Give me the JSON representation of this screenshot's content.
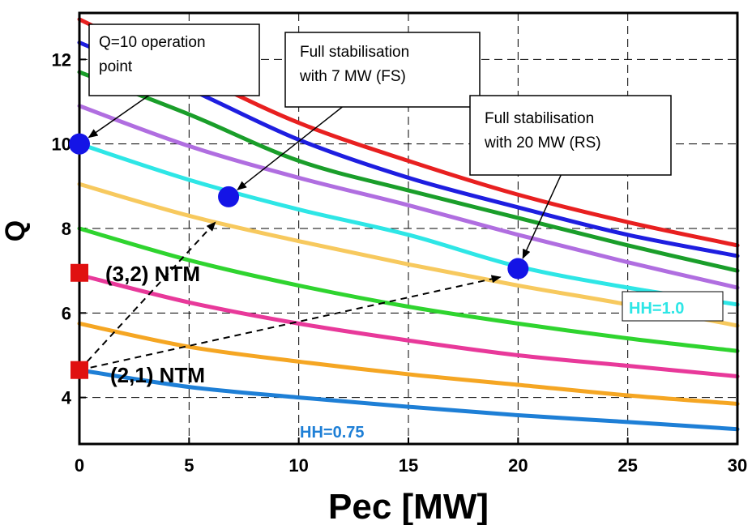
{
  "chart_data": {
    "type": "line",
    "xlabel": "Pec [MW]",
    "ylabel": "Q",
    "xlim": [
      0,
      30
    ],
    "ylim": [
      2.9,
      13.1
    ],
    "xticks": [
      "0",
      "5",
      "10",
      "15",
      "20",
      "25",
      "30"
    ],
    "yticks": [
      "4",
      "6",
      "8",
      "10",
      "12"
    ],
    "grid": true,
    "grid_style": "dashed",
    "series": [
      {
        "color": "#1e7fd6",
        "points": [
          [
            0,
            4.65
          ],
          [
            5,
            4.25
          ],
          [
            10,
            4.0
          ],
          [
            15,
            3.78
          ],
          [
            20,
            3.58
          ],
          [
            25,
            3.42
          ],
          [
            30,
            3.25
          ]
        ]
      },
      {
        "color": "#f5a623",
        "points": [
          [
            0,
            5.75
          ],
          [
            5,
            5.2
          ],
          [
            10,
            4.85
          ],
          [
            15,
            4.55
          ],
          [
            20,
            4.3
          ],
          [
            25,
            4.05
          ],
          [
            30,
            3.85
          ]
        ]
      },
      {
        "color": "#e8399a",
        "points": [
          [
            0,
            6.9
          ],
          [
            5,
            6.25
          ],
          [
            10,
            5.75
          ],
          [
            15,
            5.35
          ],
          [
            20,
            5.0
          ],
          [
            25,
            4.75
          ],
          [
            30,
            4.5
          ]
        ]
      },
      {
        "color": "#2fd42f",
        "points": [
          [
            0,
            8.0
          ],
          [
            5,
            7.25
          ],
          [
            10,
            6.65
          ],
          [
            15,
            6.15
          ],
          [
            20,
            5.75
          ],
          [
            25,
            5.4
          ],
          [
            30,
            5.1
          ]
        ]
      },
      {
        "color": "#f7c95e",
        "points": [
          [
            0,
            9.05
          ],
          [
            5,
            8.3
          ],
          [
            10,
            7.7
          ],
          [
            15,
            7.15
          ],
          [
            20,
            6.65
          ],
          [
            25,
            6.2
          ],
          [
            30,
            5.7
          ]
        ]
      },
      {
        "color": "#2ee6e6",
        "points": [
          [
            0,
            10.0
          ],
          [
            5,
            9.15
          ],
          [
            10,
            8.45
          ],
          [
            15,
            7.85
          ],
          [
            20,
            7.1
          ],
          [
            25,
            6.6
          ],
          [
            30,
            6.2
          ]
        ]
      },
      {
        "color": "#b06ee0",
        "points": [
          [
            0,
            10.9
          ],
          [
            5,
            9.95
          ],
          [
            10,
            9.2
          ],
          [
            15,
            8.55
          ],
          [
            20,
            7.85
          ],
          [
            25,
            7.2
          ],
          [
            30,
            6.6
          ]
        ]
      },
      {
        "color": "#1a9e2a",
        "points": [
          [
            0,
            11.7
          ],
          [
            5,
            10.7
          ],
          [
            10,
            9.6
          ],
          [
            15,
            8.9
          ],
          [
            20,
            8.25
          ],
          [
            25,
            7.6
          ],
          [
            30,
            7.0
          ]
        ]
      },
      {
        "color": "#1e1ee0",
        "points": [
          [
            0,
            12.4
          ],
          [
            5,
            11.3
          ],
          [
            10,
            10.1
          ],
          [
            15,
            9.2
          ],
          [
            20,
            8.5
          ],
          [
            25,
            7.85
          ],
          [
            30,
            7.35
          ]
        ]
      },
      {
        "color": "#e82020",
        "points": [
          [
            0,
            12.95
          ],
          [
            5,
            11.7
          ],
          [
            10,
            10.5
          ],
          [
            15,
            9.6
          ],
          [
            20,
            8.8
          ],
          [
            25,
            8.15
          ],
          [
            30,
            7.6
          ]
        ]
      }
    ],
    "markers": [
      {
        "x": 0,
        "y": 10.0,
        "shape": "circle",
        "color": "#1414e6"
      },
      {
        "x": 6.8,
        "y": 8.75,
        "shape": "circle",
        "color": "#1414e6"
      },
      {
        "x": 20,
        "y": 7.05,
        "shape": "circle",
        "color": "#1414e6"
      },
      {
        "x": 0,
        "y": 6.95,
        "shape": "square",
        "color": "#e01010"
      },
      {
        "x": 0,
        "y": 4.65,
        "shape": "square",
        "color": "#e01010"
      }
    ],
    "annotations": [
      {
        "lines": [
          "Q=10 operation",
          "point"
        ]
      },
      {
        "lines": [
          "Full stabilisation",
          "with 7 MW (FS)"
        ]
      },
      {
        "lines": [
          "Full stabilisation",
          "with 20 MW (RS)"
        ]
      }
    ],
    "curve_labels": [
      {
        "text": "HH=1.0",
        "color": "#2ee6e6"
      },
      {
        "text": "HH=0.75",
        "color": "#1e7fd6"
      }
    ],
    "ntm_labels": [
      "(3,2) NTM",
      "(2,1) NTM"
    ],
    "arrows": [
      {
        "from": [
          0,
          4.65
        ],
        "to": [
          6.2,
          8.15
        ],
        "style": "dashed"
      },
      {
        "from": [
          0,
          4.65
        ],
        "to": [
          19.2,
          6.85
        ],
        "style": "dashed"
      }
    ]
  }
}
